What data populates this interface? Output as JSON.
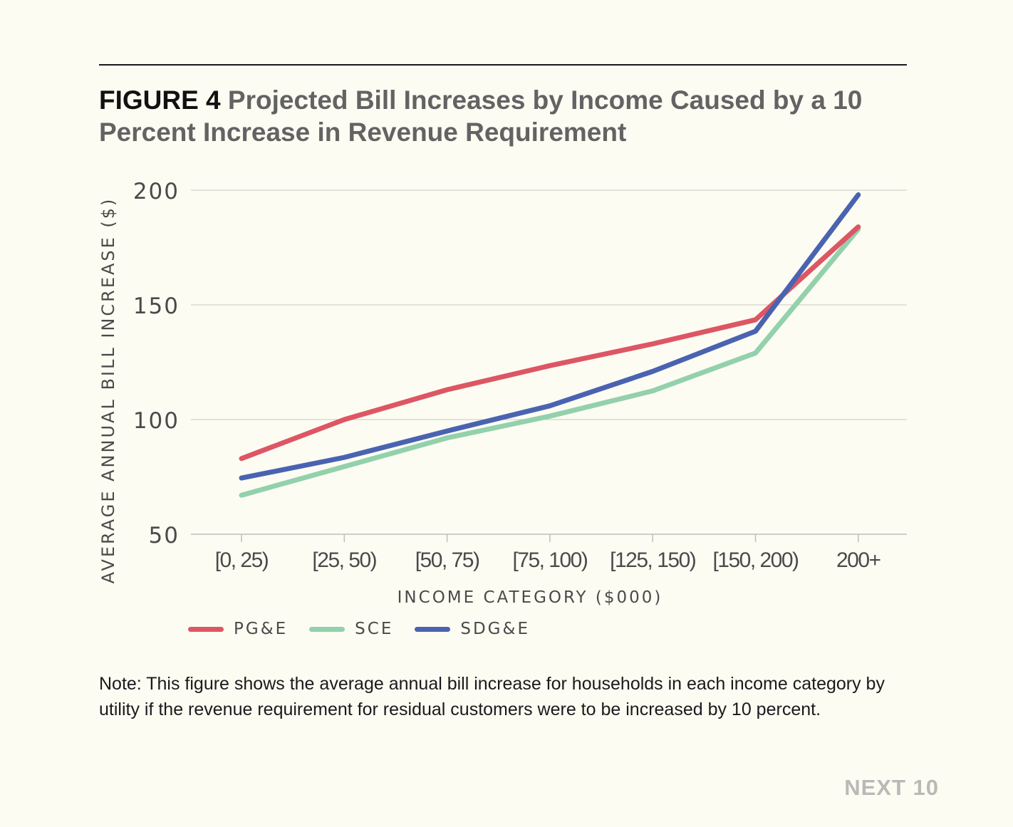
{
  "figure": {
    "label": "FIGURE 4",
    "title": "Projected Bill Increases by Income Caused by a 10 Percent Increase in Revenue Requirement"
  },
  "chart_data": {
    "type": "line",
    "categories": [
      "[0, 25)",
      "[25, 50)",
      "[50, 75)",
      "[75, 100)",
      "[125, 150)",
      "[150, 200)",
      "200+"
    ],
    "series": [
      {
        "name": "PG&E",
        "color": "#dd5664",
        "values": [
          83,
          100,
          113,
          123.5,
          133,
          143.5,
          184
        ]
      },
      {
        "name": "SCE",
        "color": "#92d1ab",
        "values": [
          67,
          79.5,
          92,
          101.5,
          112.5,
          129,
          183
        ]
      },
      {
        "name": "SDG&E",
        "color": "#4a63b1",
        "values": [
          74.5,
          83.5,
          95,
          106,
          121,
          138.5,
          198
        ]
      }
    ],
    "xlabel": "INCOME CATEGORY ($000)",
    "ylabel": "AVERAGE ANNUAL BILL INCREASE ($)",
    "ylim": [
      50,
      200
    ],
    "yticks": [
      50,
      100,
      150,
      200
    ],
    "grid": true,
    "legend": "bottom-left"
  },
  "note": "Note: This figure shows the average annual bill increase for households in each income category by utility if the revenue requirement for residual customers were to be increased by 10 percent.",
  "brand": "NEXT 10"
}
